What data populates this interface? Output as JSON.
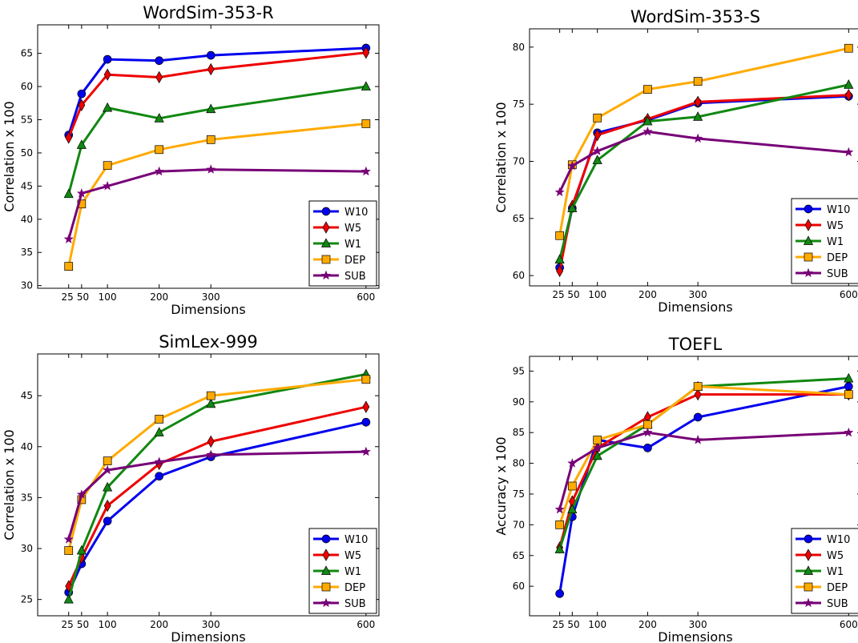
{
  "chart_data": [
    {
      "type": "line",
      "title": "WordSim-353-R",
      "xlabel": "Dimensions",
      "ylabel": "Correlation x 100",
      "x": [
        25,
        50,
        100,
        200,
        300,
        600
      ],
      "x_tick_labels": [
        "25",
        "50",
        "100",
        "200",
        "300",
        "600"
      ],
      "xlim": [
        -35,
        625
      ],
      "ylim": [
        29.6,
        69.3
      ],
      "yticks": [
        30,
        35,
        40,
        45,
        50,
        55,
        60,
        65
      ],
      "legend": "lower-right",
      "grid": false,
      "series": [
        {
          "name": "W10",
          "color": "#0000ee",
          "marker": "circle",
          "values": [
            52.7,
            58.9,
            64.1,
            63.9,
            64.7,
            65.8
          ]
        },
        {
          "name": "W5",
          "color": "#ee0000",
          "marker": "diamond",
          "values": [
            52.3,
            57.2,
            61.8,
            61.4,
            62.6,
            65.1
          ]
        },
        {
          "name": "W1",
          "color": "#118811",
          "marker": "triangle",
          "values": [
            43.8,
            51.2,
            56.8,
            55.2,
            56.6,
            60.0
          ]
        },
        {
          "name": "DEP",
          "color": "#ffaa00",
          "marker": "square",
          "values": [
            32.9,
            42.3,
            48.1,
            50.5,
            52.0,
            54.4
          ]
        },
        {
          "name": "SUB",
          "color": "#770077",
          "marker": "star",
          "values": [
            37.0,
            43.9,
            45.0,
            47.2,
            47.5,
            47.2
          ]
        }
      ]
    },
    {
      "type": "line",
      "title": "WordSim-353-S",
      "xlabel": "Dimensions",
      "ylabel": "Correlation x 100",
      "x": [
        25,
        50,
        100,
        200,
        300,
        600
      ],
      "x_tick_labels": [
        "25",
        "50",
        "100",
        "200",
        "300",
        "600"
      ],
      "xlim": [
        -35,
        625
      ],
      "ylim": [
        59.1,
        81.6
      ],
      "yticks": [
        60,
        65,
        70,
        75,
        80
      ],
      "legend": "lower-right",
      "grid": false,
      "series": [
        {
          "name": "W10",
          "color": "#0000ee",
          "marker": "circle",
          "values": [
            60.7,
            65.9,
            72.5,
            73.6,
            75.1,
            75.7
          ]
        },
        {
          "name": "W5",
          "color": "#ee0000",
          "marker": "diamond",
          "values": [
            60.4,
            66.1,
            72.3,
            73.7,
            75.2,
            75.8
          ]
        },
        {
          "name": "W1",
          "color": "#118811",
          "marker": "triangle",
          "values": [
            61.4,
            65.9,
            70.1,
            73.5,
            73.9,
            76.7
          ]
        },
        {
          "name": "DEP",
          "color": "#ffaa00",
          "marker": "square",
          "values": [
            63.5,
            69.7,
            73.8,
            76.3,
            77.0,
            79.9
          ]
        },
        {
          "name": "SUB",
          "color": "#770077",
          "marker": "star",
          "values": [
            67.3,
            69.6,
            70.9,
            72.6,
            72.0,
            70.8
          ]
        }
      ]
    },
    {
      "type": "line",
      "title": "SimLex-999",
      "xlabel": "Dimensions",
      "ylabel": "Correlation x 100",
      "x": [
        25,
        50,
        100,
        200,
        300,
        600
      ],
      "x_tick_labels": [
        "25",
        "50",
        "100",
        "200",
        "300",
        "600"
      ],
      "xlim": [
        -35,
        625
      ],
      "ylim": [
        23.4,
        49.1
      ],
      "yticks": [
        25,
        30,
        35,
        40,
        45
      ],
      "legend": "lower-right",
      "grid": false,
      "series": [
        {
          "name": "W10",
          "color": "#0000ee",
          "marker": "circle",
          "values": [
            25.7,
            28.5,
            32.7,
            37.1,
            39.0,
            42.4
          ]
        },
        {
          "name": "W5",
          "color": "#ee0000",
          "marker": "diamond",
          "values": [
            26.3,
            29.1,
            34.2,
            38.3,
            40.5,
            43.9
          ]
        },
        {
          "name": "W1",
          "color": "#118811",
          "marker": "triangle",
          "values": [
            25.0,
            29.8,
            36.0,
            41.4,
            44.2,
            47.1
          ]
        },
        {
          "name": "DEP",
          "color": "#ffaa00",
          "marker": "square",
          "values": [
            29.8,
            34.8,
            38.6,
            42.7,
            45.0,
            46.6
          ]
        },
        {
          "name": "SUB",
          "color": "#770077",
          "marker": "star",
          "values": [
            30.9,
            35.3,
            37.7,
            38.5,
            39.2,
            39.5
          ]
        }
      ]
    },
    {
      "type": "line",
      "title": "TOEFL",
      "xlabel": "Dimensions",
      "ylabel": "Accuracy x 100",
      "x": [
        25,
        50,
        100,
        200,
        300,
        600
      ],
      "x_tick_labels": [
        "25",
        "50",
        "100",
        "200",
        "300",
        "600"
      ],
      "xlim": [
        -35,
        625
      ],
      "ylim": [
        55.2,
        97.4
      ],
      "yticks": [
        60,
        65,
        70,
        75,
        80,
        85,
        90,
        95
      ],
      "legend": "lower-right",
      "grid": false,
      "series": [
        {
          "name": "W10",
          "color": "#0000ee",
          "marker": "circle",
          "values": [
            58.8,
            71.3,
            83.8,
            82.5,
            87.5,
            92.5
          ]
        },
        {
          "name": "W5",
          "color": "#ee0000",
          "marker": "diamond",
          "values": [
            66.3,
            73.8,
            82.5,
            87.5,
            91.2,
            91.2
          ]
        },
        {
          "name": "W1",
          "color": "#118811",
          "marker": "triangle",
          "values": [
            66.0,
            72.5,
            81.2,
            86.3,
            92.5,
            93.8
          ]
        },
        {
          "name": "DEP",
          "color": "#ffaa00",
          "marker": "square",
          "values": [
            70.0,
            76.3,
            83.8,
            86.3,
            92.5,
            91.2
          ]
        },
        {
          "name": "SUB",
          "color": "#770077",
          "marker": "star",
          "values": [
            72.5,
            80.0,
            82.5,
            85.0,
            83.8,
            85.0
          ]
        }
      ]
    }
  ]
}
